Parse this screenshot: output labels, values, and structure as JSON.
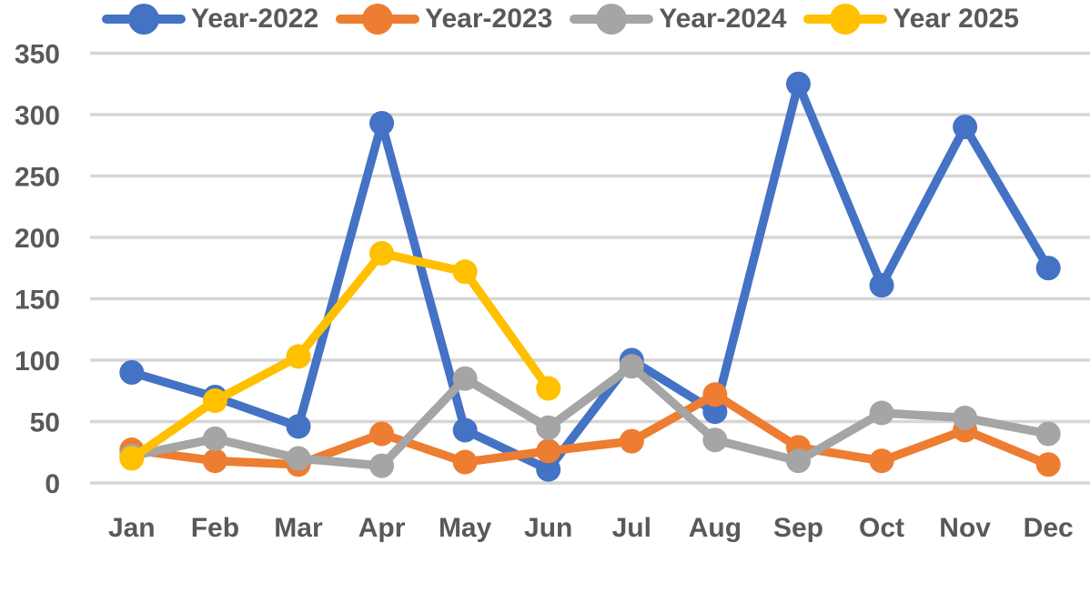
{
  "chart_data": {
    "type": "line",
    "title": "",
    "xlabel": "",
    "ylabel": "",
    "categories": [
      "Jan",
      "Feb",
      "Mar",
      "Apr",
      "May",
      "Jun",
      "Jul",
      "Aug",
      "Sep",
      "Oct",
      "Nov",
      "Dec"
    ],
    "series": [
      {
        "name": "Year-2022",
        "color": "#4472C4",
        "values": [
          90,
          70,
          46,
          293,
          43,
          11,
          100,
          58,
          325,
          161,
          290,
          175
        ]
      },
      {
        "name": "Year-2023",
        "color": "#ED7D31",
        "values": [
          27,
          18,
          15,
          40,
          17,
          26,
          34,
          72,
          29,
          18,
          43,
          15
        ]
      },
      {
        "name": "Year-2024",
        "color": "#A5A5A5",
        "values": [
          22,
          36,
          20,
          14,
          85,
          45,
          95,
          35,
          18,
          57,
          53,
          40
        ]
      },
      {
        "name": "Year 2025",
        "color": "#FFC000",
        "values": [
          20,
          67,
          103,
          187,
          172,
          77,
          null,
          null,
          null,
          null,
          null,
          null
        ]
      }
    ],
    "ylim": [
      0,
      350
    ],
    "yticks": [
      0,
      50,
      100,
      150,
      200,
      250,
      300,
      350
    ],
    "grid": "horizontal",
    "gridline_color": "#D6D6D6",
    "axis_text_color": "#595959",
    "legend_position": "top",
    "background": "#FFFFFF"
  }
}
